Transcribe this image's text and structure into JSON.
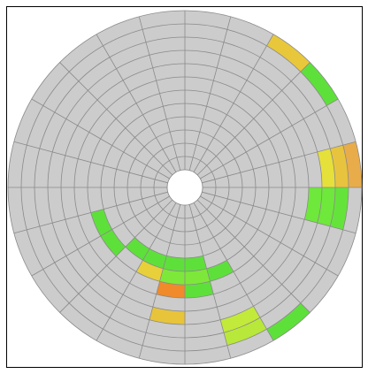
{
  "disk": {
    "rings": 12,
    "sectors": 24,
    "cells": [
      {
        "ring": 11,
        "sector": 2,
        "color": "#e8c83a"
      },
      {
        "ring": 11,
        "sector": 3,
        "color": "#5ee03a"
      },
      {
        "ring": 9,
        "sector": 5,
        "color": "#e6e03a"
      },
      {
        "ring": 10,
        "sector": 5,
        "color": "#e8c43e"
      },
      {
        "ring": 11,
        "sector": 5,
        "color": "#e8ac4a"
      },
      {
        "ring": 8,
        "sector": 6,
        "color": "#6ee83a"
      },
      {
        "ring": 9,
        "sector": 6,
        "color": "#6ee83a"
      },
      {
        "ring": 10,
        "sector": 6,
        "color": "#64e43a"
      },
      {
        "ring": 11,
        "sector": 9,
        "color": "#5ee03a"
      },
      {
        "ring": 9,
        "sector": 10,
        "color": "#c2ea3a"
      },
      {
        "ring": 10,
        "sector": 10,
        "color": "#b8e83a"
      },
      {
        "ring": 8,
        "sector": 12,
        "color": "#e8c43a"
      },
      {
        "ring": 4,
        "sector": 11,
        "color": "#5ee03a"
      },
      {
        "ring": 4,
        "sector": 12,
        "color": "#5ee03a"
      },
      {
        "ring": 4,
        "sector": 13,
        "color": "#5ee03a"
      },
      {
        "ring": 4,
        "sector": 14,
        "color": "#5ee03a"
      },
      {
        "ring": 5,
        "sector": 10,
        "color": "#5ee03a"
      },
      {
        "ring": 5,
        "sector": 11,
        "color": "#7ee83a"
      },
      {
        "ring": 5,
        "sector": 12,
        "color": "#7ee83a"
      },
      {
        "ring": 5,
        "sector": 13,
        "color": "#e8d03a"
      },
      {
        "ring": 6,
        "sector": 11,
        "color": "#5ee03a"
      },
      {
        "ring": 6,
        "sector": 12,
        "color": "#f08a2a"
      },
      {
        "ring": 5,
        "sector": 15,
        "color": "#5ee03a"
      },
      {
        "ring": 5,
        "sector": 16,
        "color": "#5ee03a"
      }
    ]
  }
}
